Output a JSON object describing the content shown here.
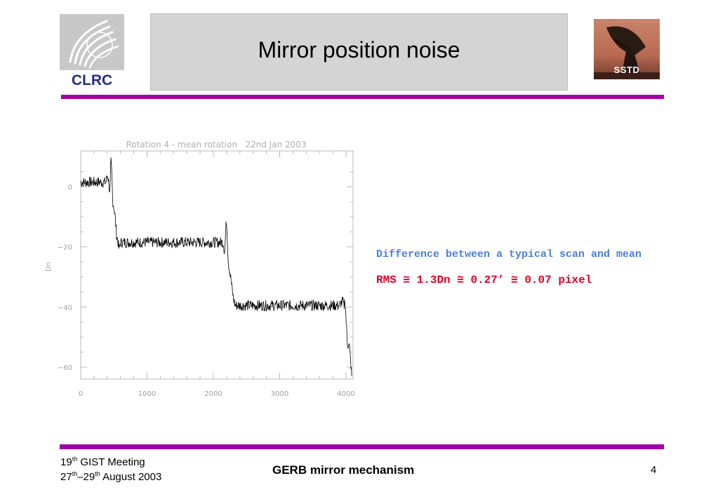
{
  "header": {
    "title": "Mirror position noise",
    "logo_left_text": "CLRC",
    "logo_right_text": "SSTD"
  },
  "colors": {
    "accent_bar": "#a000a8",
    "note_blue": "#4a7fe0",
    "note_red": "#e0002a",
    "title_box_bg": "#d4d4d4"
  },
  "note": {
    "description": "Difference between a typical scan and mean",
    "rms": "RMS ≅ 1.3Dn ≅ 0.27’ ≅ 0.07 pixel"
  },
  "footer": {
    "meeting_day": "19",
    "meeting_day_suffix": "th",
    "meeting_name": " GIST Meeting",
    "dates_start": "27",
    "dates_start_suffix": "th",
    "dates_dash": "–29",
    "dates_end_suffix": "th",
    "dates_rest": " August 2003",
    "center": "GERB mirror mechanism",
    "page_number": "4"
  },
  "chart_data": {
    "type": "line",
    "title": "Rotation 4 - mean rotation   22nd Jan 2003",
    "xlabel": "",
    "ylabel": "Dn",
    "xlim": [
      0,
      4100
    ],
    "ylim": [
      -63,
      9
    ],
    "x_ticks": [
      0,
      1000,
      2000,
      3000,
      4000
    ],
    "y_ticks": [
      0,
      -20,
      -40,
      -60
    ],
    "x_tick_labels": [
      "0",
      "1000",
      "2000",
      "3000",
      "4000"
    ],
    "y_tick_labels": [
      "0",
      "−20",
      "−40",
      "−60"
    ],
    "series": [
      {
        "color": "#000000",
        "noise_rms": 1.3,
        "points": [
          [
            0,
            1.5
          ],
          [
            380,
            1.5
          ],
          [
            405,
            4
          ],
          [
            425,
            1
          ],
          [
            440,
            -3
          ],
          [
            455,
            8.5
          ],
          [
            470,
            4
          ],
          [
            480,
            -4
          ],
          [
            520,
            -10
          ],
          [
            540,
            -16
          ],
          [
            560,
            -18
          ],
          [
            580,
            -21
          ],
          [
            600,
            -18.5
          ],
          [
            1500,
            -18.5
          ],
          [
            2150,
            -18.5
          ],
          [
            2170,
            -22
          ],
          [
            2195,
            -11
          ],
          [
            2205,
            -14
          ],
          [
            2225,
            -25
          ],
          [
            2260,
            -30
          ],
          [
            2300,
            -37
          ],
          [
            2330,
            -39.5
          ],
          [
            3900,
            -39.5
          ],
          [
            3950,
            -38
          ],
          [
            3970,
            -40
          ],
          [
            3985,
            -37
          ],
          [
            4000,
            -44
          ],
          [
            4020,
            -52
          ],
          [
            4050,
            -53
          ],
          [
            4070,
            -58
          ],
          [
            4085,
            -63
          ]
        ]
      }
    ],
    "grid": false
  }
}
